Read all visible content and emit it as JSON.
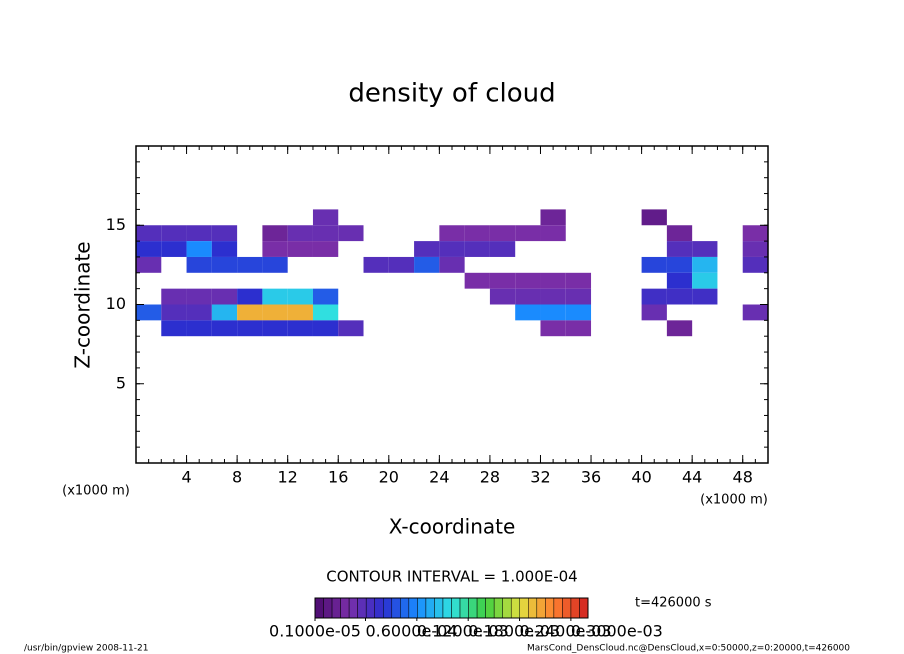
{
  "chart_data": {
    "type": "heatmap",
    "title": "density of cloud",
    "x_label": "X-coordinate",
    "y_label": "Z-coordinate",
    "x_unit": "(x1000 m)",
    "y_unit": "(x1000 m)",
    "contour_note": "CONTOUR INTERVAL = 1.000E-04",
    "time_note": "t=426000 s",
    "footer_left": "/usr/bin/gpview  2008-11-21",
    "footer_right": "MarsCond_DensCloud.nc@DensCloud,x=0:50000,z=0:20000,t=426000",
    "xlim": [
      0,
      50
    ],
    "ylim": [
      0,
      20
    ],
    "xticks": [
      4,
      8,
      12,
      16,
      20,
      24,
      28,
      32,
      36,
      40,
      44,
      48
    ],
    "yticks": [
      5,
      10,
      15
    ],
    "x": [
      1,
      3,
      5,
      7,
      9,
      11,
      13,
      15,
      17,
      19,
      21,
      23,
      25,
      27,
      29,
      31,
      33,
      35,
      37,
      39,
      41,
      43,
      45,
      47,
      49
    ],
    "y": [
      15.5,
      14.5,
      13.5,
      12.5,
      11.5,
      10.5,
      9.5,
      8.5
    ],
    "values": [
      [
        null,
        null,
        null,
        null,
        null,
        null,
        null,
        5e-05,
        null,
        null,
        null,
        null,
        null,
        null,
        null,
        null,
        3e-05,
        null,
        null,
        null,
        2e-05,
        null,
        null,
        null,
        null
      ],
      [
        6e-05,
        6e-05,
        6e-05,
        6e-05,
        null,
        3e-05,
        5e-05,
        5e-05,
        5e-05,
        null,
        null,
        null,
        4e-05,
        4e-05,
        4e-05,
        4e-05,
        4e-05,
        null,
        null,
        null,
        null,
        3e-05,
        null,
        null,
        4e-05
      ],
      [
        8e-05,
        8e-05,
        0.00012,
        8e-05,
        null,
        4e-05,
        4e-05,
        4e-05,
        null,
        null,
        null,
        6e-05,
        6e-05,
        6e-05,
        6e-05,
        null,
        null,
        null,
        null,
        null,
        null,
        6e-05,
        6e-05,
        null,
        5e-05
      ],
      [
        5e-05,
        null,
        9e-05,
        9e-05,
        9e-05,
        9e-05,
        null,
        null,
        null,
        6e-05,
        6e-05,
        0.0001,
        5e-05,
        null,
        null,
        null,
        null,
        null,
        null,
        null,
        9e-05,
        9e-05,
        0.00014,
        null,
        6e-05
      ],
      [
        null,
        null,
        null,
        null,
        null,
        null,
        null,
        null,
        null,
        null,
        null,
        null,
        null,
        4e-05,
        4e-05,
        4e-05,
        4e-05,
        4e-05,
        null,
        null,
        null,
        8e-05,
        0.00015,
        null,
        null
      ],
      [
        null,
        5e-05,
        5e-05,
        5e-05,
        8e-05,
        0.00015,
        0.00015,
        0.0001,
        null,
        null,
        null,
        null,
        null,
        null,
        5e-05,
        5e-05,
        5e-05,
        5e-05,
        null,
        null,
        7e-05,
        7e-05,
        7e-05,
        null,
        null
      ],
      [
        0.0001,
        6e-05,
        6e-05,
        0.00014,
        0.00026,
        0.00026,
        0.00026,
        0.00016,
        null,
        null,
        null,
        null,
        null,
        null,
        null,
        0.00012,
        0.00012,
        0.00012,
        null,
        null,
        5e-05,
        null,
        null,
        null,
        5e-05
      ],
      [
        null,
        8e-05,
        8e-05,
        8e-05,
        8e-05,
        8e-05,
        8e-05,
        8e-05,
        6e-05,
        null,
        null,
        null,
        null,
        null,
        null,
        null,
        4e-05,
        4e-05,
        null,
        null,
        null,
        3e-05,
        null,
        null,
        null
      ]
    ],
    "clim": [
      1e-06,
      0.00032
    ],
    "colormap": [
      "#4b0a6e",
      "#7a2fa8",
      "#2b2fd0",
      "#1a8cff",
      "#30e0e0",
      "#40d040",
      "#e0e040",
      "#ff8030",
      "#d02020"
    ],
    "colorbar_ticks": [
      {
        "value": 1e-06,
        "label": "0.1000e-05"
      },
      {
        "value": 6e-05,
        "label": "0.6000e-04"
      },
      {
        "value": 0.00012,
        "label": "0.1200e-03"
      },
      {
        "value": 0.00018,
        "label": "0.1800e-03"
      },
      {
        "value": 0.00024,
        "label": "0.2400e-03"
      },
      {
        "value": 0.0003,
        "label": "0.3000e-03"
      }
    ]
  }
}
